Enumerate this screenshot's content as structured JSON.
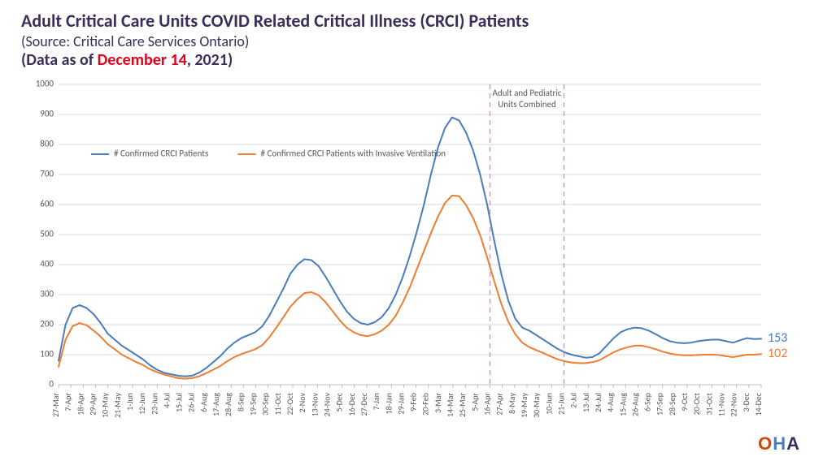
{
  "title": {
    "main": "Adult Critical Care Units COVID Related Critical Illness (CRCI) Patients",
    "source": "(Source: Critical Care Services Ontario)",
    "date_prefix": "(Data as of ",
    "date_highlight": "December 14",
    "date_suffix": ", 2021)"
  },
  "chart": {
    "type": "line",
    "ylim": [
      0,
      1000
    ],
    "ytick_step": 100,
    "background_color": "#ffffff",
    "grid_color": "#d9d9d9",
    "axis_color": "#bfbfbf",
    "annotation": {
      "text_line1": "Adult and Pediatric",
      "text_line2": "Units Combined",
      "x_start": "16-Apr",
      "x_end": "21-Jun",
      "line_color": "#c8a0c8",
      "line_dash": "6,5"
    },
    "legend": {
      "items": [
        {
          "label": "# Confirmed CRCI Patients",
          "color": "#4a7dbb"
        },
        {
          "label": "# Confirmed CRCI Patients with Invasive Ventilation",
          "color": "#ed7d31"
        }
      ]
    },
    "end_labels": [
      {
        "value": "153",
        "color": "#4a7dbb"
      },
      {
        "value": "102",
        "color": "#ed7d31"
      }
    ],
    "x_labels": [
      "27-Mar",
      "7-Apr",
      "18-Apr",
      "29-Apr",
      "10-May",
      "21-May",
      "1-Jun",
      "12-Jun",
      "23-Jun",
      "4-Jul",
      "15-Jul",
      "26-Jul",
      "6-Aug",
      "17-Aug",
      "28-Aug",
      "8-Sep",
      "19-Sep",
      "30-Sep",
      "11-Oct",
      "22-Oct",
      "2-Nov",
      "13-Nov",
      "24-Nov",
      "5-Dec",
      "16-Dec",
      "27-Dec",
      "7-Jan",
      "18-Jan",
      "29-Jan",
      "9-Feb",
      "20-Feb",
      "3-Mar",
      "14-Mar",
      "25-Mar",
      "5-Apr",
      "16-Apr",
      "27-Apr",
      "8-May",
      "19-May",
      "30-May",
      "10-Jun",
      "21-Jun",
      "2-Jul",
      "13-Jul",
      "24-Jul",
      "4-Aug",
      "15-Aug",
      "26-Aug",
      "6-Sep",
      "17-Sep",
      "28-Sep",
      "9-Oct",
      "20-Oct",
      "31-Oct",
      "11-Nov",
      "22-Nov",
      "3-Dec",
      "14-Dec"
    ],
    "series": [
      {
        "name": "crci",
        "color": "#4a7dbb",
        "width": 2,
        "values": [
          80,
          200,
          255,
          265,
          255,
          235,
          205,
          170,
          150,
          130,
          115,
          100,
          85,
          65,
          50,
          40,
          35,
          30,
          28,
          30,
          40,
          55,
          75,
          95,
          120,
          140,
          155,
          165,
          175,
          195,
          230,
          275,
          320,
          370,
          400,
          418,
          415,
          395,
          360,
          320,
          280,
          245,
          220,
          205,
          200,
          208,
          225,
          255,
          300,
          360,
          430,
          510,
          600,
          700,
          790,
          855,
          890,
          880,
          840,
          780,
          700,
          600,
          480,
          370,
          280,
          220,
          190,
          180,
          165,
          150,
          135,
          120,
          108,
          100,
          95,
          90,
          92,
          105,
          130,
          155,
          175,
          185,
          190,
          188,
          180,
          168,
          155,
          145,
          140,
          138,
          140,
          145,
          148,
          150,
          150,
          145,
          140,
          148,
          155,
          152,
          153
        ]
      },
      {
        "name": "vent",
        "color": "#ed7d31",
        "width": 2,
        "values": [
          60,
          150,
          195,
          205,
          198,
          180,
          160,
          135,
          118,
          100,
          88,
          76,
          66,
          52,
          42,
          34,
          28,
          22,
          20,
          22,
          28,
          38,
          50,
          62,
          78,
          92,
          102,
          110,
          118,
          132,
          158,
          190,
          225,
          260,
          285,
          305,
          308,
          298,
          275,
          245,
          215,
          190,
          175,
          165,
          162,
          168,
          180,
          200,
          230,
          275,
          325,
          385,
          445,
          505,
          560,
          605,
          630,
          628,
          598,
          555,
          498,
          425,
          345,
          270,
          210,
          168,
          140,
          125,
          115,
          105,
          95,
          85,
          78,
          74,
          72,
          72,
          75,
          82,
          95,
          108,
          118,
          125,
          130,
          130,
          125,
          118,
          110,
          104,
          100,
          98,
          98,
          99,
          100,
          100,
          99,
          95,
          92,
          96,
          100,
          100,
          102
        ]
      }
    ]
  },
  "logo": {
    "text": "OHA"
  }
}
